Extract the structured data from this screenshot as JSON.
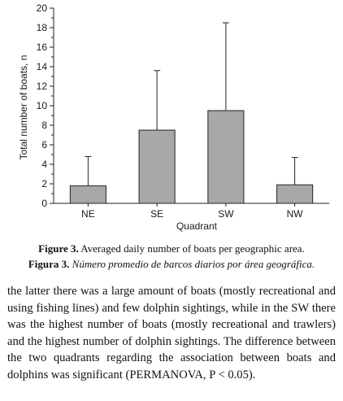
{
  "chart_data": {
    "type": "bar",
    "categories": [
      "NE",
      "SE",
      "SW",
      "NW"
    ],
    "values": [
      1.8,
      7.5,
      9.5,
      1.9
    ],
    "error_upper": [
      4.8,
      13.6,
      18.5,
      4.7
    ],
    "xlabel": "Quadrant",
    "ylabel": "Total number of boats, n",
    "ylim": [
      0,
      20
    ],
    "yticks": [
      0,
      2,
      4,
      6,
      8,
      10,
      12,
      14,
      16,
      18,
      20
    ],
    "bar_color": "#a8a8a8",
    "grid": false
  },
  "figure_caption": {
    "en_label": "Figure 3.",
    "en_text": " Averaged daily number of boats per geographic area.",
    "es_label": "Figura 3.",
    "es_text": " Número promedio de barcos diarios por área geográfica."
  },
  "body_text": "the latter there was a large amount of boats (mostly recreational and using fishing lines) and few dolphin sightings, while in the SW there was the highest number of boats (mostly recreational and trawlers) and the highest number of dolphin sightings. The difference between the two quadrants regarding the association between boats and dolphins was significant (PERMANOVA, P < 0.05)."
}
